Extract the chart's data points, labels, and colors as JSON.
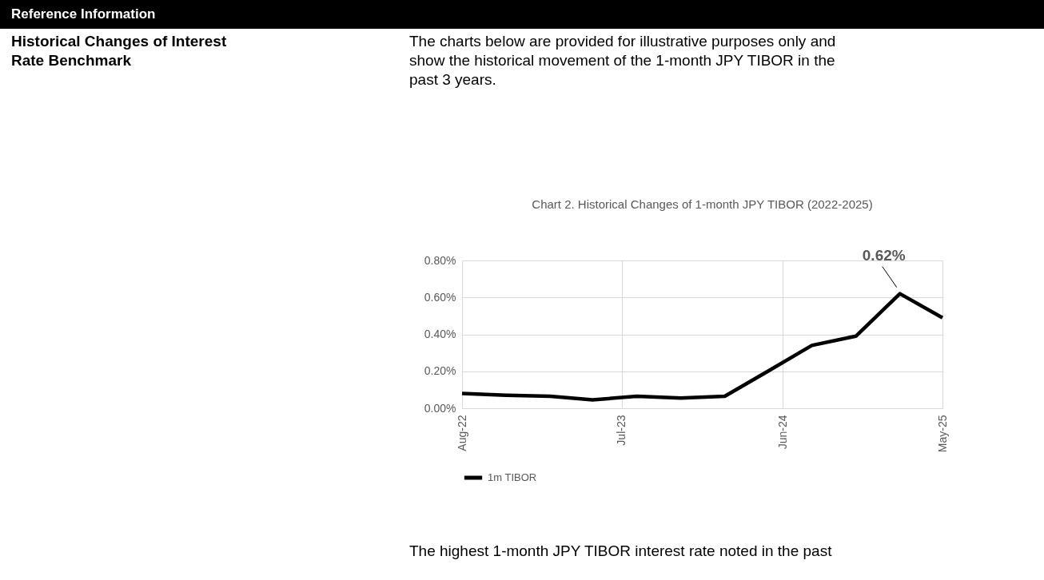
{
  "chart_data": {
    "type": "line",
    "title": "Chart 2. Historical Changes of 1-month JPY TIBOR (2022-2025)",
    "x": [
      "2022-08",
      "2022-11",
      "2023-02",
      "2023-05",
      "2023-08",
      "2023-11",
      "2024-02",
      "2024-05",
      "2024-08",
      "2024-11",
      "2025-02",
      "2025-05"
    ],
    "series": [
      {
        "name": "1m TIBOR",
        "color": "#000000",
        "values": [
          0.08,
          0.07,
          0.065,
          0.045,
          0.065,
          0.055,
          0.065,
          0.2,
          0.34,
          0.39,
          0.62,
          0.49
        ]
      }
    ],
    "xlim": [
      "2022-08",
      "2025-05"
    ],
    "xticks": [
      {
        "value": "2022-08",
        "label": "Aug-22"
      },
      {
        "value": "2023-07",
        "label": "Jul-23"
      },
      {
        "value": "2024-06",
        "label": "Jun-24"
      },
      {
        "value": "2025-05",
        "label": "May-25"
      }
    ],
    "ylim": [
      0,
      0.8
    ],
    "yticks": [
      {
        "value": 0,
        "label": "0.00%"
      },
      {
        "value": 0.2,
        "label": "0.20%"
      },
      {
        "value": 0.4,
        "label": "0.40%"
      },
      {
        "value": 0.6,
        "label": "0.60%"
      },
      {
        "value": 0.8,
        "label": "0.80%"
      }
    ],
    "grid": true,
    "legend": "bottom",
    "marker": "none",
    "line_style": "solid",
    "annotations": [
      "Reference Information",
      "Historical Changes of Interest Rate Benchmark",
      "The charts below are provided for illustrative purposes only and show the historical movement of the 1-month JPY TIBOR in the past 3 years.",
      "The highest 1-month JPY TIBOR interest rate noted in the past",
      {
        "text": "0.62%",
        "x": "2025-02",
        "y": 0.62
      }
    ]
  }
}
